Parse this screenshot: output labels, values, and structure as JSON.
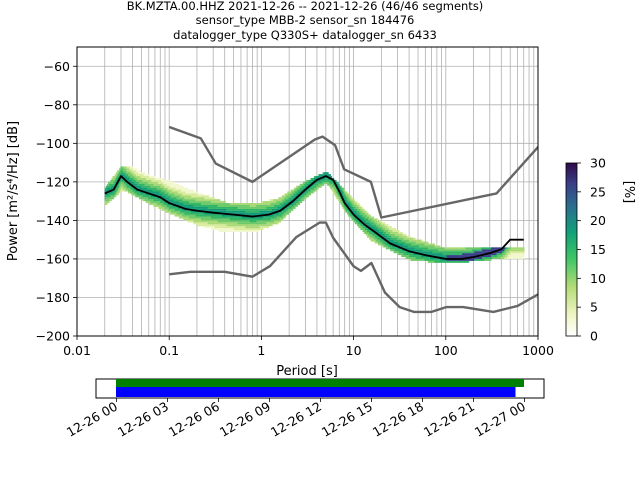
{
  "title_lines": [
    "BK.MZTA.00.HHZ   2021-12-26 -- 2021-12-26  (46/46 segments)",
    "sensor_type MBB-2 sensor_sn 184476",
    "datalogger_type Q330S+ datalogger_sn 6433"
  ],
  "colors": {
    "nlnm_nhnm": "#666666",
    "mode": "#000000",
    "grid": "#b0b0b0",
    "coverage_data": "#008000",
    "coverage_gaps": "#0000ff"
  },
  "chart_data": [
    {
      "type": "heatmap",
      "xlabel": "Period [s]",
      "ylabel": "Power [m²/s⁴/Hz] [dB]",
      "xscale": "log",
      "xlim": [
        0.01,
        1000
      ],
      "ylim": [
        -200,
        -50
      ],
      "x_tick_labels": [
        "0.01",
        "0.1",
        "1",
        "10",
        "100",
        "1000"
      ],
      "x_tick_values": [
        0.01,
        0.1,
        1,
        10,
        100,
        1000
      ],
      "y_tick_values": [
        -200,
        -180,
        -160,
        -140,
        -120,
        -100,
        -80,
        -60
      ],
      "grid": true,
      "colorbar": {
        "label": "[%]",
        "range": [
          0,
          30
        ],
        "ticks": [
          0,
          5,
          10,
          15,
          20,
          25,
          30
        ]
      },
      "series": [
        {
          "role": "mode",
          "x": [
            0.02,
            0.025,
            0.03,
            0.035,
            0.045,
            0.06,
            0.08,
            0.1,
            0.15,
            0.2,
            0.3,
            0.5,
            0.8,
            1.2,
            1.6,
            2.2,
            3,
            4,
            5,
            6,
            7,
            8,
            10,
            13,
            17,
            25,
            40,
            60,
            100,
            150,
            200,
            300,
            400,
            500,
            700
          ],
          "y": [
            -126,
            -124,
            -117,
            -120,
            -124,
            -126,
            -128,
            -131,
            -134,
            -135,
            -136,
            -137,
            -138,
            -137,
            -135,
            -130,
            -124,
            -119,
            -117,
            -119,
            -125,
            -131,
            -137,
            -142,
            -146,
            -152,
            -156,
            -158,
            -160,
            -160,
            -159,
            -157,
            -155,
            -150,
            -150
          ]
        },
        {
          "role": "spread_high",
          "x": [
            0.02,
            0.03,
            0.035,
            0.06,
            0.1,
            0.2,
            0.4,
            0.8,
            1.5,
            3,
            5,
            8,
            15,
            40,
            100,
            300
          ],
          "y": [
            -124,
            -113,
            -113,
            -118,
            -121,
            -127,
            -132,
            -133,
            -130,
            -121,
            -116,
            -126,
            -139,
            -150,
            -156,
            -155
          ]
        },
        {
          "role": "spread_low",
          "x": [
            0.02,
            0.03,
            0.035,
            0.06,
            0.1,
            0.2,
            0.4,
            0.8,
            1.5,
            3,
            5,
            8,
            15,
            40,
            100,
            300
          ],
          "y": [
            -132,
            -124,
            -125,
            -131,
            -136,
            -142,
            -146,
            -146,
            -141,
            -128,
            -120,
            -135,
            -150,
            -160,
            -162,
            -160
          ]
        },
        {
          "role": "nhnm",
          "x": [
            0.1,
            0.22,
            0.32,
            0.8,
            3.8,
            4.6,
            6.3,
            7.9,
            15.4,
            20,
            354.8,
            10000
          ],
          "y": [
            -91.5,
            -97.4,
            -110.5,
            -120,
            -98,
            -96.5,
            -101,
            -113.5,
            -120,
            -138.5,
            -126,
            -48.5
          ]
        },
        {
          "role": "nlnm",
          "x": [
            0.1,
            0.17,
            0.4,
            0.8,
            1.24,
            2.4,
            4.3,
            5,
            6,
            10,
            12,
            15.6,
            21.9,
            31.6,
            45,
            70,
            101,
            154,
            328,
            600,
            10000
          ],
          "y": [
            -168,
            -166.7,
            -166.7,
            -169.2,
            -163.7,
            -148.6,
            -141.1,
            -141.1,
            -149,
            -163.8,
            -166.2,
            -162.1,
            -177.5,
            -185,
            -187.5,
            -187.5,
            -185,
            -185,
            -187.5,
            -184.4,
            -151.5
          ]
        }
      ]
    },
    {
      "type": "bar",
      "subtype": "time-coverage",
      "xlim": [
        "2021-12-26 00:00",
        "2021-12-27 00:00"
      ],
      "x_tick_labels": [
        "12-26 00",
        "12-26 03",
        "12-26 06",
        "12-26 09",
        "12-26 12",
        "12-26 15",
        "12-26 18",
        "12-26 21",
        "12-27 00"
      ],
      "series": [
        {
          "role": "data",
          "start_hours": 0,
          "end_hours": 24.0
        },
        {
          "role": "processed",
          "start_hours": 0,
          "end_hours": 23.5
        }
      ]
    }
  ]
}
